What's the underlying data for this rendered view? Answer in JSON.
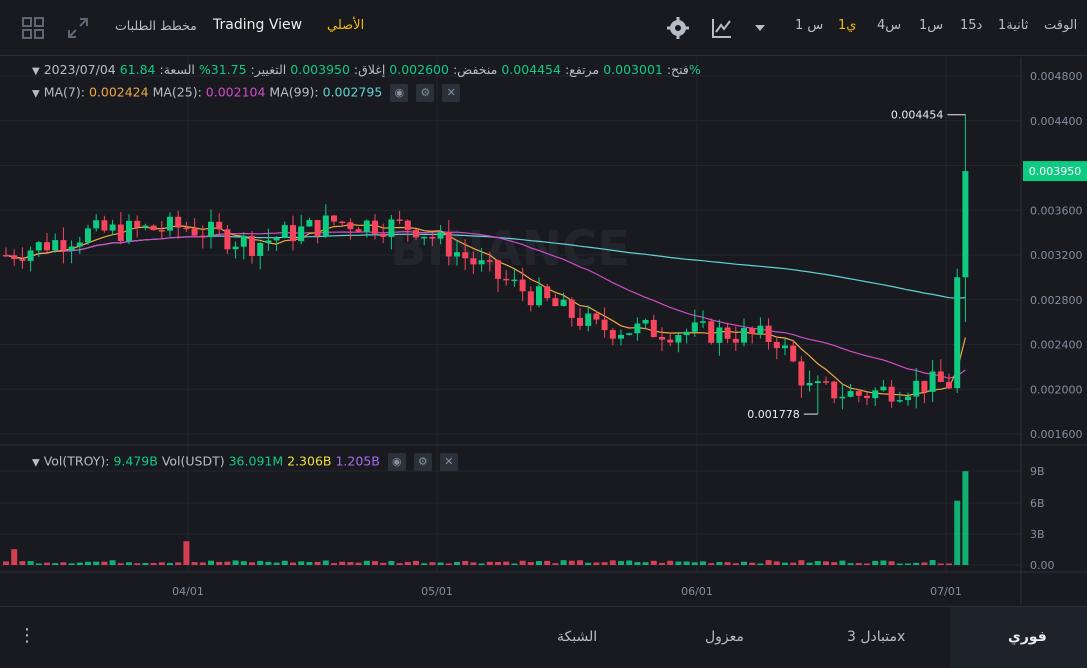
{
  "toolbar": {
    "time_label": "الوقت",
    "intervals": [
      "1ثانية",
      "15د",
      "1س",
      "4س",
      "1ي",
      "1 س"
    ],
    "active_interval": "1ي",
    "views": [
      "الأصلي",
      "Trading View",
      "مخطط الطلبات"
    ],
    "active_view": "الأصلي"
  },
  "ohlc": {
    "date": "2023/07/04",
    "open_label": "فتح:",
    "open": "0.003001",
    "high_label": "مرتفع:",
    "high": "0.004454",
    "low_label": "منخفض:",
    "low": "0.002600",
    "close_label": "إغلاق:",
    "close": "0.003950",
    "change_label": "التغيير:",
    "change": "31.75%",
    "amplitude_label": "السعة:",
    "amplitude": "61.84%"
  },
  "ma": {
    "ma7_label": "MA(7):",
    "ma7": "0.002424",
    "ma25_label": "MA(25):",
    "ma25": "0.002104",
    "ma99_label": "MA(99):",
    "ma99": "0.002795"
  },
  "volume": {
    "troy_label": "Vol(TROY):",
    "troy": "9.479B",
    "usdt_label": "Vol(USDT)",
    "usdt": "36.091M",
    "ma1": "2.306B",
    "ma2": "1.205B"
  },
  "price_axis": [
    "0.004800",
    "0.004400",
    "0.004000",
    "0.003600",
    "0.003200",
    "0.002800",
    "0.002400",
    "0.002000",
    "0.001600"
  ],
  "volume_axis": [
    "9B",
    "6B",
    "3B",
    "0.00"
  ],
  "date_axis": [
    "04/01",
    "05/01",
    "06/01",
    "07/01"
  ],
  "current_price": "0.003950",
  "high_marker": "0.004454",
  "low_marker": "0.001778",
  "watermark": "BINANCE",
  "bottom_tabs": [
    "فوري",
    "متبادل 3x",
    "معزول",
    "الشبكة"
  ],
  "active_bottom_tab": "فوري",
  "colors": {
    "up": "#0ecb81",
    "down": "#f6465d",
    "accent": "#f0b90b",
    "ma7": "#f0a841",
    "ma25": "#d04cc9",
    "ma99": "#5fd3d3"
  },
  "chart_data": {
    "type": "candlestick",
    "interval": "1d",
    "ylim": [
      0.0016,
      0.0048
    ],
    "x_ticks": [
      "04/01",
      "05/01",
      "06/01",
      "07/01"
    ],
    "price_last": 0.00395,
    "price_high": 0.004454,
    "price_low": 0.001778
  }
}
